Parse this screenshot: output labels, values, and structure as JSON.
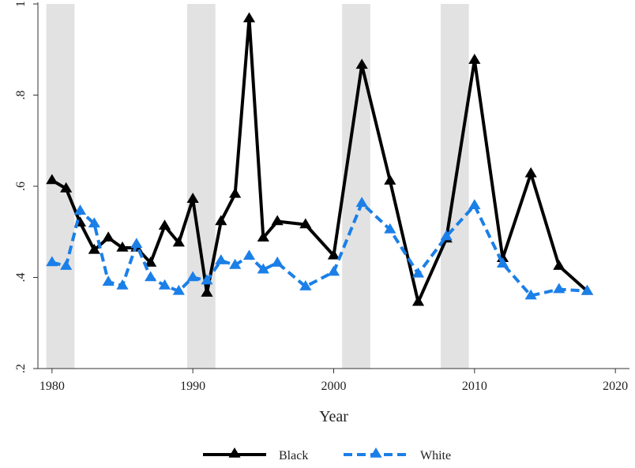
{
  "chart_data": {
    "type": "line",
    "title": "",
    "xlabel": "Year",
    "ylabel": "",
    "xlim": [
      1979,
      2021
    ],
    "ylim": [
      0.2,
      1.0
    ],
    "x_ticks": [
      1980,
      1990,
      2000,
      2010,
      2020
    ],
    "x_tick_labels": [
      "1980",
      "1990",
      "2000",
      "2010",
      "2020"
    ],
    "y_ticks": [
      0.2,
      0.4,
      0.6,
      0.8,
      1.0
    ],
    "y_tick_labels": [
      ".2",
      ".4",
      ".6",
      ".8",
      "1"
    ],
    "grid": false,
    "legend_position": "bottom",
    "shaded_periods": [
      [
        1979.6,
        1981.6
      ],
      [
        1989.6,
        1991.6
      ],
      [
        2000.6,
        2002.6
      ],
      [
        2007.6,
        2009.6
      ]
    ],
    "shade_color": "#e2e2e2",
    "series": [
      {
        "name": "Black",
        "color": "#000000",
        "dash": "solid",
        "marker": "triangle",
        "x": [
          1980,
          1981,
          1982,
          1983,
          1984,
          1985,
          1986,
          1987,
          1988,
          1989,
          1990,
          1991,
          1992,
          1993,
          1994,
          1995,
          1996,
          1998,
          2000,
          2002,
          2004,
          2006,
          2008,
          2010,
          2012,
          2014,
          2016,
          2018
        ],
        "y": [
          0.613,
          0.595,
          0.52,
          0.46,
          0.487,
          0.465,
          0.465,
          0.432,
          0.513,
          0.476,
          0.572,
          0.366,
          0.523,
          0.583,
          0.968,
          0.487,
          0.523,
          0.516,
          0.448,
          0.866,
          0.612,
          0.346,
          0.485,
          0.877,
          0.442,
          0.628,
          0.425,
          0.37
        ]
      },
      {
        "name": "White",
        "color": "#1b7fe8",
        "dash": "dashed",
        "marker": "triangle",
        "x": [
          1980,
          1981,
          1982,
          1983,
          1984,
          1985,
          1986,
          1987,
          1988,
          1989,
          1990,
          1991,
          1992,
          1993,
          1994,
          1995,
          1996,
          1998,
          2000,
          2002,
          2004,
          2006,
          2008,
          2010,
          2012,
          2014,
          2016,
          2018
        ],
        "y": [
          0.433,
          0.425,
          0.546,
          0.518,
          0.39,
          0.382,
          0.473,
          0.4,
          0.382,
          0.37,
          0.4,
          0.393,
          0.437,
          0.427,
          0.447,
          0.417,
          0.432,
          0.38,
          0.412,
          0.563,
          0.505,
          0.408,
          0.49,
          0.558,
          0.43,
          0.36,
          0.374,
          0.37
        ]
      }
    ]
  }
}
